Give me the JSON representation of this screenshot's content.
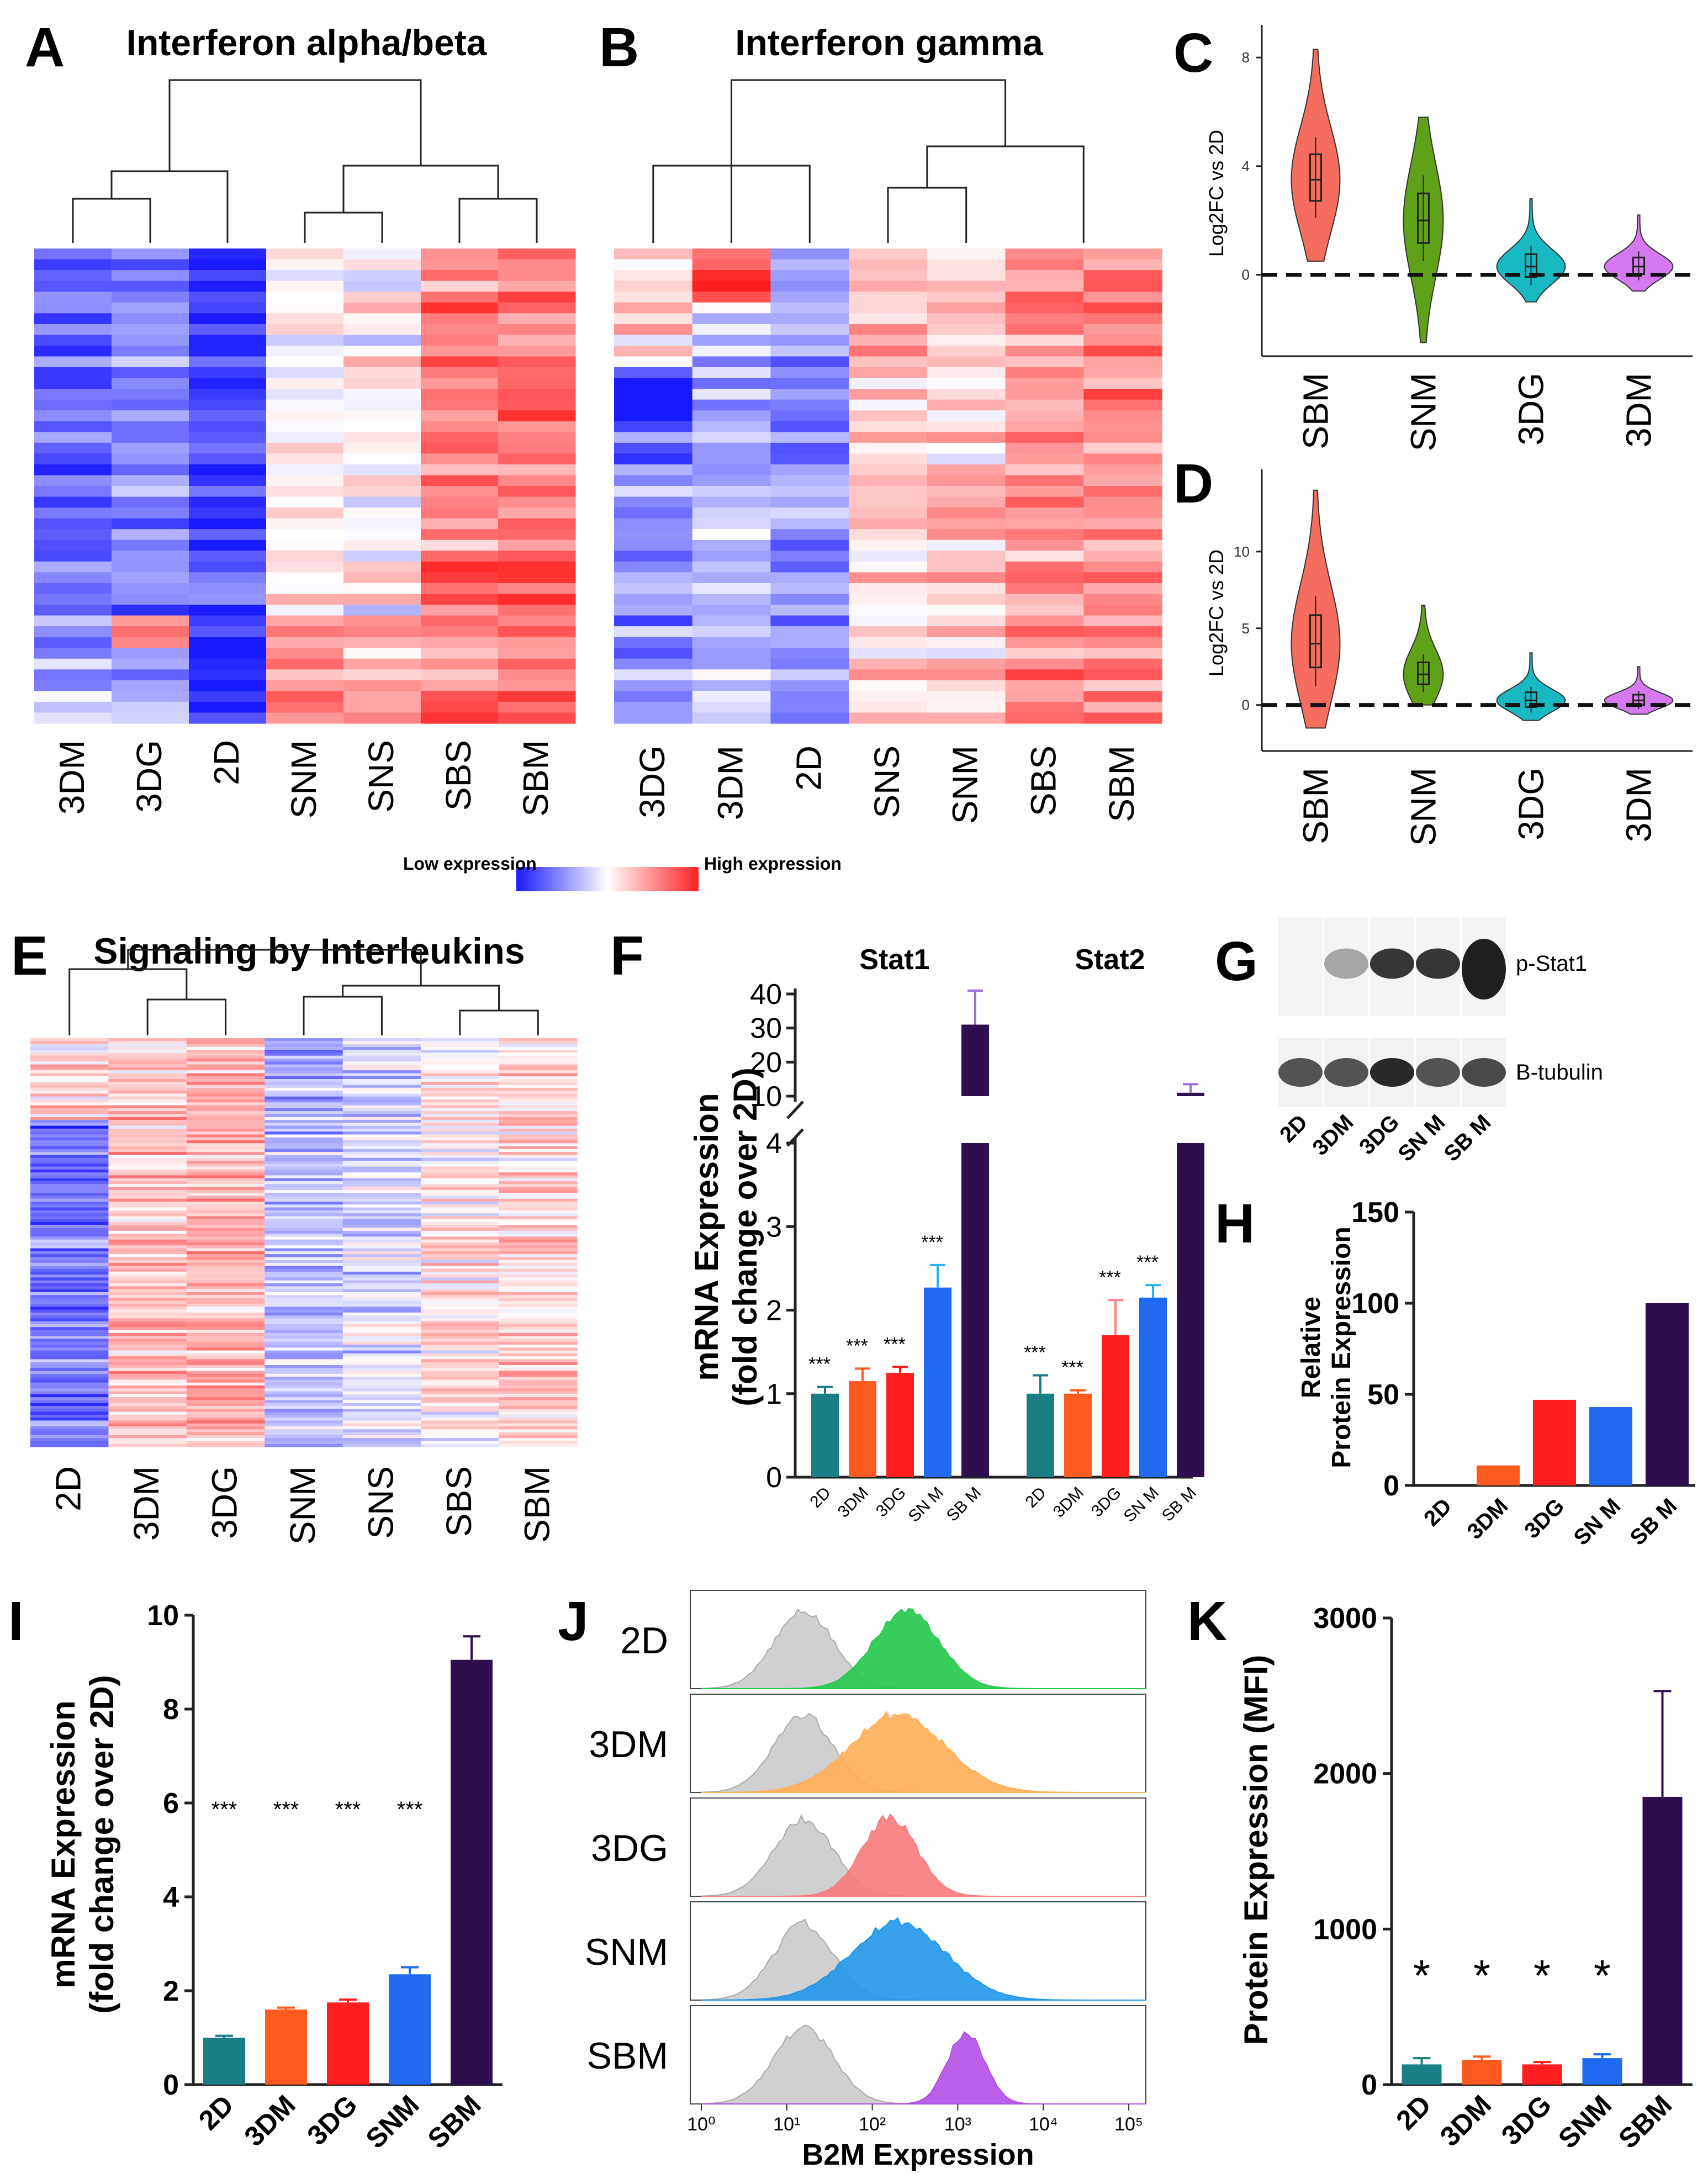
{
  "panel_letters": {
    "A": "A",
    "B": "B",
    "C": "C",
    "D": "D",
    "E": "E",
    "F": "F",
    "G": "G",
    "H": "H",
    "I": "I",
    "J": "J",
    "K": "K"
  },
  "heatmap_legend": {
    "low": "Low expression",
    "high": "High expression",
    "colors": [
      "#1a1aff",
      "#ffffff",
      "#ff2020"
    ]
  },
  "colors": {
    "2D": "#1a7f84",
    "3DM": "#ff5a1f",
    "3DG": "#ff1f1f",
    "SNM": "#1f6af0",
    "SBM": "#2d0f4e"
  },
  "chart_data": [
    {
      "panel": "A",
      "type": "heatmap",
      "title": "Interferon alpha/beta",
      "columns": [
        "3DM",
        "3DG",
        "2D",
        "SNM",
        "SNS",
        "SBS",
        "SBM"
      ],
      "rows": 44
    },
    {
      "panel": "B",
      "type": "heatmap",
      "title": "Interferon gamma",
      "columns": [
        "3DG",
        "3DM",
        "2D",
        "SNS",
        "SNM",
        "SBS",
        "SBM"
      ],
      "rows": 44
    },
    {
      "panel": "C",
      "type": "violin",
      "ylabel": "Log2FC vs 2D",
      "categories": [
        "SBM",
        "SNM",
        "3DG",
        "3DM"
      ],
      "colors": [
        "#f46d5f",
        "#5fa21a",
        "#19b9c4",
        "#d679f0"
      ],
      "medians": [
        3.5,
        2.0,
        0.3,
        0.3
      ],
      "mins": [
        0.5,
        -2.5,
        -1.0,
        -0.6
      ],
      "maxs": [
        8.3,
        5.8,
        2.8,
        2.2
      ],
      "yticks": [
        0,
        4,
        8
      ],
      "ylim": [
        -3,
        9
      ]
    },
    {
      "panel": "D",
      "type": "violin",
      "ylabel": "Log2FC vs 2D",
      "categories": [
        "SBM",
        "SNM",
        "3DG",
        "3DM"
      ],
      "colors": [
        "#f46d5f",
        "#5fa21a",
        "#19b9c4",
        "#d679f0"
      ],
      "medians": [
        4.0,
        2.0,
        0.3,
        0.3
      ],
      "mins": [
        -1.5,
        0.0,
        -1.0,
        -0.6
      ],
      "maxs": [
        14.0,
        6.5,
        3.4,
        2.5
      ],
      "yticks": [
        0,
        5,
        10
      ],
      "ylim": [
        -3,
        15
      ]
    },
    {
      "panel": "E",
      "type": "heatmap",
      "title": "Signaling by Interleukins",
      "columns": [
        "2D",
        "3DM",
        "3DG",
        "SNM",
        "SNS",
        "SBS",
        "SBM"
      ],
      "rows": 140
    },
    {
      "panel": "F",
      "type": "bar",
      "ylabel": "mRNA Expression (fold change over 2D)",
      "groups": [
        "Stat1",
        "Stat2"
      ],
      "categories": [
        "2D",
        "3DM",
        "3DG",
        "SN M",
        "SB M"
      ],
      "series": [
        {
          "name": "Stat1",
          "values": [
            1.0,
            1.15,
            1.25,
            2.27,
            31
          ],
          "errors": [
            0.08,
            0.15,
            0.07,
            0.27,
            10
          ]
        },
        {
          "name": "Stat2",
          "values": [
            1.0,
            1.0,
            1.7,
            2.15,
            11
          ],
          "errors": [
            0.22,
            0.04,
            0.42,
            0.15,
            2.5
          ]
        }
      ],
      "significance": [
        "***",
        "***",
        "***",
        "***",
        ""
      ],
      "lower_ticks": [
        "0",
        "1",
        "2",
        "3",
        "4"
      ],
      "upper_ticks": [
        "10",
        "20",
        "30",
        "40"
      ]
    },
    {
      "panel": "G",
      "type": "blot",
      "rows": [
        "p-Stat1",
        "B-tubulin"
      ],
      "lanes": [
        "2D",
        "3DM",
        "3DG",
        "SN M",
        "SB M"
      ],
      "p_stat1_intensity": [
        0.0,
        0.35,
        0.85,
        0.85,
        0.95
      ],
      "tubulin_intensity": [
        0.75,
        0.75,
        0.95,
        0.75,
        0.8
      ]
    },
    {
      "panel": "H",
      "type": "bar",
      "ylabel": "Relative Protein Expression",
      "categories": [
        "2D",
        "3DM",
        "3DG",
        "SN M",
        "SB M"
      ],
      "values": [
        0,
        11,
        47,
        43,
        100
      ],
      "ylim": [
        0,
        150
      ],
      "yticks": [
        0,
        50,
        100,
        150
      ]
    },
    {
      "panel": "I",
      "type": "bar",
      "ylabel": "mRNA Expression (fold change over 2D)",
      "categories": [
        "2D",
        "3DM",
        "3DG",
        "SNM",
        "SBM"
      ],
      "values": [
        1.0,
        1.6,
        1.75,
        2.35,
        9.05
      ],
      "errors": [
        0.04,
        0.04,
        0.06,
        0.15,
        0.5
      ],
      "significance": [
        "***",
        "***",
        "***",
        "***",
        ""
      ],
      "ylim": [
        0,
        10
      ],
      "yticks": [
        0,
        2,
        4,
        6,
        8,
        10
      ]
    },
    {
      "panel": "J",
      "type": "histogram",
      "xlabel": "B2M Expression",
      "rows": [
        "2D",
        "3DM",
        "3DG",
        "SNM",
        "SBM"
      ],
      "colors": [
        "#22c84a",
        "#ffae55",
        "#f77a7a",
        "#2196e8",
        "#b14ee6"
      ],
      "peak_log10": [
        2.4,
        2.3,
        2.2,
        2.3,
        3.1
      ],
      "peak_sd": [
        0.38,
        0.55,
        0.32,
        0.55,
        0.22
      ],
      "control_peak_log10": 1.2,
      "xticks": [
        "10⁰",
        "10¹",
        "10²",
        "10³",
        "10⁴",
        "10⁵"
      ]
    },
    {
      "panel": "K",
      "type": "bar",
      "ylabel": "Protein Expression (MFI)",
      "categories": [
        "2D",
        "3DM",
        "3DG",
        "SNM",
        "SBM"
      ],
      "values": [
        130,
        160,
        130,
        170,
        1850
      ],
      "errors": [
        40,
        20,
        15,
        25,
        680
      ],
      "significance": [
        "*",
        "*",
        "*",
        "*",
        ""
      ],
      "ylim": [
        0,
        3000
      ],
      "yticks": [
        0,
        1000,
        2000,
        3000
      ]
    }
  ]
}
